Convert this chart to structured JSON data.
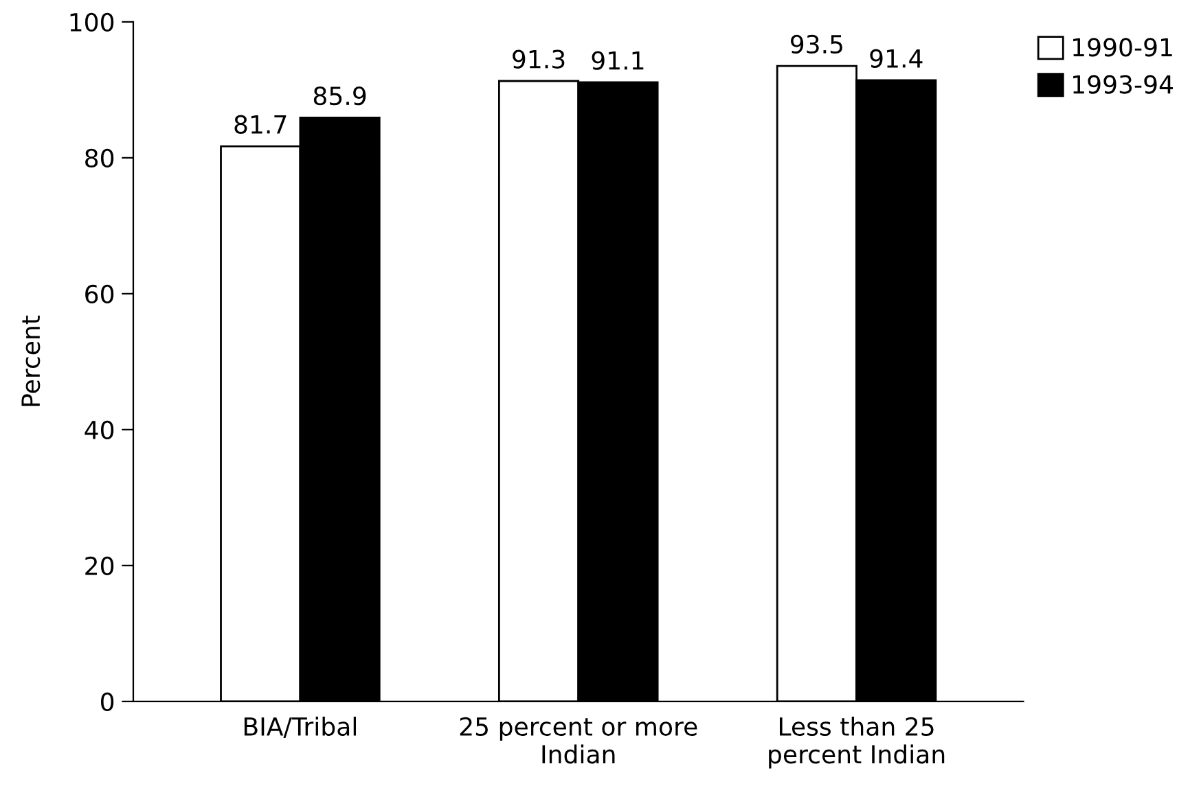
{
  "chart_data": {
    "type": "bar",
    "ylabel": "Percent",
    "categories": [
      "BIA/Tribal",
      "25 percent or more\nIndian",
      "Less than 25\npercent Indian"
    ],
    "series": [
      {
        "name": "1990-91",
        "color": "#ffffff",
        "values": [
          81.7,
          91.3,
          93.5
        ]
      },
      {
        "name": "1993-94",
        "color": "#000000",
        "values": [
          85.9,
          91.1,
          91.4
        ]
      }
    ],
    "ylim": [
      0,
      100
    ],
    "yticks": [
      0,
      20,
      40,
      60,
      80,
      100
    ],
    "data_labels": true,
    "grid": false,
    "legend": "top right"
  }
}
